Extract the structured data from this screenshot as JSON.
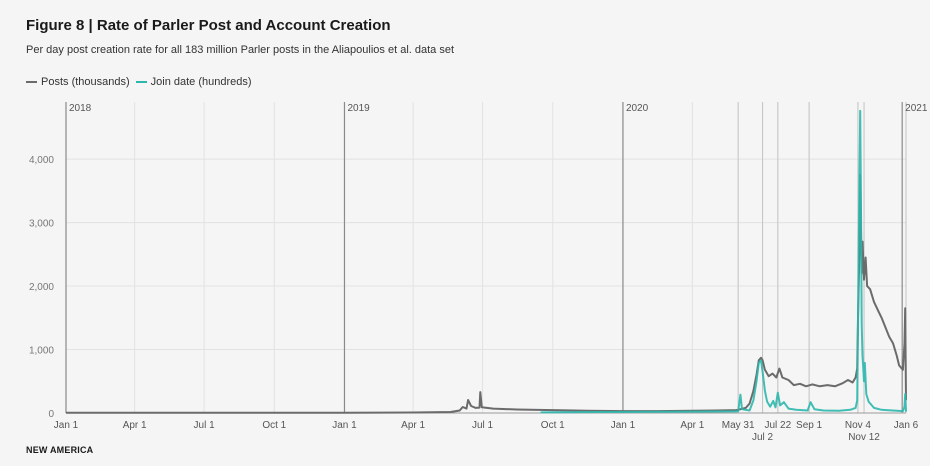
{
  "header": {
    "title": "Figure 8 | Rate of Parler Post and Account Creation",
    "subtitle": "Per day post creation rate for all 183 million Parler posts in the Aliapoulios et al. data set"
  },
  "footer": {
    "brand": "NEW AMERICA"
  },
  "chart_data": {
    "type": "line",
    "title": "Figure 8 | Rate of Parler Post and Account Creation",
    "subtitle": "Per day post creation rate for all 183 million Parler posts in the Aliapoulios et al. data set",
    "xlabel": "",
    "ylabel": "",
    "xlim": [
      "2018-01-01",
      "2021-01-06"
    ],
    "ylim": [
      0,
      4900
    ],
    "y_ticks": [
      0,
      1000,
      2000,
      3000,
      4000
    ],
    "y_tick_labels": [
      "0",
      "1,000",
      "2,000",
      "3,000",
      "4,000"
    ],
    "x_ticks": [
      {
        "date": "2018-01-01",
        "label": "Jan 1"
      },
      {
        "date": "2018-04-01",
        "label": "Apr 1"
      },
      {
        "date": "2018-07-01",
        "label": "Jul 1"
      },
      {
        "date": "2018-10-01",
        "label": "Oct 1"
      },
      {
        "date": "2019-01-01",
        "label": "Jan 1"
      },
      {
        "date": "2019-04-01",
        "label": "Apr 1"
      },
      {
        "date": "2019-07-01",
        "label": "Jul 1"
      },
      {
        "date": "2019-10-01",
        "label": "Oct 1"
      },
      {
        "date": "2020-01-01",
        "label": "Jan 1"
      },
      {
        "date": "2020-04-01",
        "label": "Apr 1"
      },
      {
        "date": "2020-05-31",
        "label": "May 31"
      },
      {
        "date": "2020-07-02",
        "label": "Jul 2"
      },
      {
        "date": "2020-07-22",
        "label": "Jul 22"
      },
      {
        "date": "2020-09-01",
        "label": "Sep 1"
      },
      {
        "date": "2020-11-04",
        "label": "Nov 4"
      },
      {
        "date": "2020-11-12",
        "label": "Nov 12"
      },
      {
        "date": "2021-01-06",
        "label": "Jan 6"
      }
    ],
    "year_markers": [
      {
        "date": "2018-01-01",
        "label": "2018"
      },
      {
        "date": "2019-01-01",
        "label": "2019"
      },
      {
        "date": "2020-01-01",
        "label": "2020"
      },
      {
        "date": "2021-01-01",
        "label": "2021"
      }
    ],
    "event_markers": [
      "2020-05-31",
      "2020-07-02",
      "2020-07-22",
      "2020-09-01",
      "2020-11-04",
      "2020-11-12",
      "2021-01-06"
    ],
    "grid": true,
    "legend": "top-left",
    "series": [
      {
        "name": "Posts (thousands)",
        "color": "#6b6b6b",
        "points": [
          [
            "2018-01-01",
            5
          ],
          [
            "2018-06-01",
            5
          ],
          [
            "2018-12-31",
            5
          ],
          [
            "2019-04-01",
            8
          ],
          [
            "2019-05-20",
            15
          ],
          [
            "2019-06-01",
            40
          ],
          [
            "2019-06-05",
            95
          ],
          [
            "2019-06-10",
            70
          ],
          [
            "2019-06-12",
            205
          ],
          [
            "2019-06-16",
            110
          ],
          [
            "2019-06-22",
            80
          ],
          [
            "2019-06-27",
            85
          ],
          [
            "2019-06-28",
            330
          ],
          [
            "2019-06-30",
            90
          ],
          [
            "2019-07-15",
            70
          ],
          [
            "2019-08-15",
            55
          ],
          [
            "2019-10-01",
            45
          ],
          [
            "2019-11-15",
            35
          ],
          [
            "2020-01-01",
            30
          ],
          [
            "2020-02-15",
            30
          ],
          [
            "2020-04-01",
            35
          ],
          [
            "2020-05-01",
            40
          ],
          [
            "2020-05-28",
            45
          ],
          [
            "2020-05-31",
            50
          ],
          [
            "2020-06-10",
            80
          ],
          [
            "2020-06-15",
            150
          ],
          [
            "2020-06-20",
            350
          ],
          [
            "2020-06-24",
            600
          ],
          [
            "2020-06-27",
            830
          ],
          [
            "2020-06-30",
            870
          ],
          [
            "2020-07-02",
            830
          ],
          [
            "2020-07-05",
            680
          ],
          [
            "2020-07-10",
            580
          ],
          [
            "2020-07-15",
            620
          ],
          [
            "2020-07-20",
            560
          ],
          [
            "2020-07-24",
            700
          ],
          [
            "2020-07-28",
            560
          ],
          [
            "2020-08-05",
            520
          ],
          [
            "2020-08-12",
            440
          ],
          [
            "2020-08-20",
            460
          ],
          [
            "2020-08-28",
            420
          ],
          [
            "2020-09-05",
            450
          ],
          [
            "2020-09-15",
            420
          ],
          [
            "2020-09-25",
            440
          ],
          [
            "2020-10-05",
            420
          ],
          [
            "2020-10-15",
            470
          ],
          [
            "2020-10-22",
            520
          ],
          [
            "2020-10-28",
            480
          ],
          [
            "2020-11-01",
            560
          ],
          [
            "2020-11-03",
            700
          ],
          [
            "2020-11-04",
            1400
          ],
          [
            "2020-11-06",
            2600
          ],
          [
            "2020-11-07",
            3750
          ],
          [
            "2020-11-08",
            2900
          ],
          [
            "2020-11-09",
            2200
          ],
          [
            "2020-11-10",
            2700
          ],
          [
            "2020-11-12",
            2100
          ],
          [
            "2020-11-14",
            2450
          ],
          [
            "2020-11-16",
            2000
          ],
          [
            "2020-11-20",
            1950
          ],
          [
            "2020-11-25",
            1750
          ],
          [
            "2020-12-01",
            1600
          ],
          [
            "2020-12-05",
            1500
          ],
          [
            "2020-12-10",
            1350
          ],
          [
            "2020-12-15",
            1200
          ],
          [
            "2020-12-20",
            1100
          ],
          [
            "2020-12-25",
            900
          ],
          [
            "2020-12-28",
            750
          ],
          [
            "2021-01-02",
            680
          ],
          [
            "2021-01-04",
            1100
          ],
          [
            "2021-01-05",
            1650
          ],
          [
            "2021-01-06",
            200
          ]
        ]
      },
      {
        "name": "Join date (hundreds)",
        "color": "#2cb7ad",
        "points": [
          [
            "2019-09-15",
            10
          ],
          [
            "2019-12-01",
            15
          ],
          [
            "2020-03-01",
            20
          ],
          [
            "2020-05-28",
            25
          ],
          [
            "2020-05-31",
            30
          ],
          [
            "2020-06-03",
            290
          ],
          [
            "2020-06-05",
            60
          ],
          [
            "2020-06-15",
            40
          ],
          [
            "2020-06-20",
            200
          ],
          [
            "2020-06-24",
            500
          ],
          [
            "2020-06-27",
            790
          ],
          [
            "2020-06-30",
            830
          ],
          [
            "2020-07-02",
            650
          ],
          [
            "2020-07-05",
            350
          ],
          [
            "2020-07-08",
            180
          ],
          [
            "2020-07-12",
            100
          ],
          [
            "2020-07-16",
            190
          ],
          [
            "2020-07-19",
            90
          ],
          [
            "2020-07-22",
            320
          ],
          [
            "2020-07-25",
            120
          ],
          [
            "2020-07-30",
            170
          ],
          [
            "2020-08-05",
            70
          ],
          [
            "2020-08-15",
            50
          ],
          [
            "2020-08-30",
            40
          ],
          [
            "2020-09-03",
            170
          ],
          [
            "2020-09-08",
            60
          ],
          [
            "2020-09-20",
            40
          ],
          [
            "2020-10-10",
            35
          ],
          [
            "2020-10-25",
            50
          ],
          [
            "2020-11-01",
            80
          ],
          [
            "2020-11-03",
            200
          ],
          [
            "2020-11-04",
            1200
          ],
          [
            "2020-11-05",
            2600
          ],
          [
            "2020-11-06",
            3800
          ],
          [
            "2020-11-07",
            4760
          ],
          [
            "2020-11-08",
            3200
          ],
          [
            "2020-11-09",
            1400
          ],
          [
            "2020-11-10",
            900
          ],
          [
            "2020-11-11",
            700
          ],
          [
            "2020-11-12",
            500
          ],
          [
            "2020-11-13",
            790
          ],
          [
            "2020-11-15",
            300
          ],
          [
            "2020-11-18",
            180
          ],
          [
            "2020-11-25",
            80
          ],
          [
            "2020-12-05",
            50
          ],
          [
            "2020-12-20",
            40
          ],
          [
            "2021-01-02",
            30
          ],
          [
            "2021-01-04",
            100
          ],
          [
            "2021-01-05",
            300
          ],
          [
            "2021-01-06",
            20
          ]
        ]
      }
    ]
  }
}
